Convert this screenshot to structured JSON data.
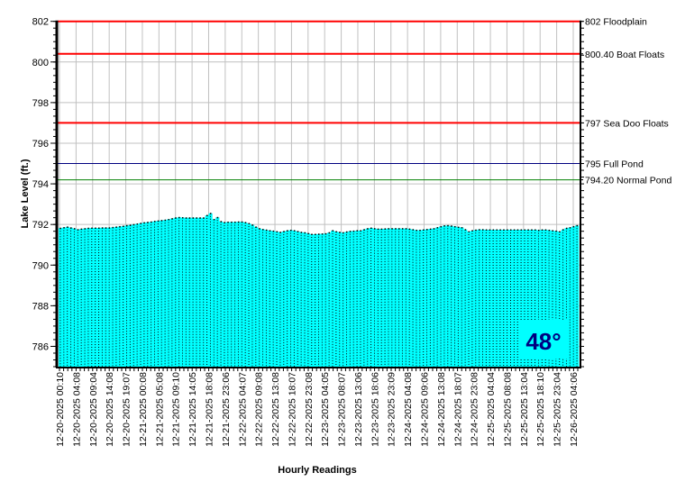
{
  "chart_data": {
    "type": "area",
    "title": "",
    "xlabel": "Hourly Readings",
    "ylabel": "Lake Level (ft.)",
    "ylim": [
      785,
      802
    ],
    "yticks": [
      786,
      788,
      790,
      792,
      794,
      796,
      798,
      800,
      802
    ],
    "grid": true,
    "fill_color": "#00FFFF",
    "x_tick_labels": [
      "12-20-2025 00:10",
      "12-20-2025 04:08",
      "12-20-2025 09:04",
      "12-20-2025 14:08",
      "12-20-2025 19:07",
      "12-21-2025 00:08",
      "12-21-2025 05:08",
      "12-21-2025 09:10",
      "12-21-2025 14:05",
      "12-21-2025 18:08",
      "12-21-2025 23:06",
      "12-22-2025 04:07",
      "12-22-2025 09:08",
      "12-22-2025 13:08",
      "12-22-2025 18:07",
      "12-22-2025 23:08",
      "12-23-2025 04:05",
      "12-23-2025 08:07",
      "12-23-2025 13:06",
      "12-23-2025 18:06",
      "12-23-2025 23:09",
      "12-24-2025 04:08",
      "12-24-2025 09:06",
      "12-24-2025 13:08",
      "12-24-2025 18:07",
      "12-24-2025 23:08",
      "12-25-2025 04:04",
      "12-25-2025 08:08",
      "12-25-2025 13:04",
      "12-25-2025 18:10",
      "12-25-2025 23:04",
      "12-26-2025 04:06"
    ],
    "values": [
      791.82,
      791.85,
      791.88,
      791.84,
      791.8,
      791.75,
      791.78,
      791.8,
      791.82,
      791.83,
      791.83,
      791.83,
      791.84,
      791.84,
      791.84,
      791.86,
      791.88,
      791.9,
      791.92,
      791.95,
      791.97,
      792.0,
      792.03,
      792.06,
      792.09,
      792.11,
      792.13,
      792.16,
      792.18,
      792.2,
      792.22,
      792.25,
      792.29,
      792.33,
      792.35,
      792.34,
      792.33,
      792.33,
      792.33,
      792.33,
      792.33,
      792.33,
      792.45,
      792.55,
      792.25,
      792.35,
      792.15,
      792.1,
      792.12,
      792.12,
      792.12,
      792.13,
      792.13,
      792.1,
      792.05,
      791.98,
      791.88,
      791.8,
      791.76,
      791.73,
      791.7,
      791.68,
      791.65,
      791.62,
      791.66,
      791.7,
      791.72,
      791.7,
      791.66,
      791.62,
      791.6,
      791.56,
      791.52,
      791.52,
      791.53,
      791.54,
      791.55,
      791.6,
      791.7,
      791.65,
      791.62,
      791.6,
      791.64,
      791.67,
      791.68,
      791.7,
      791.7,
      791.75,
      791.8,
      791.83,
      791.8,
      791.78,
      791.78,
      791.79,
      791.8,
      791.8,
      791.8,
      791.8,
      791.8,
      791.8,
      791.78,
      791.75,
      791.72,
      791.72,
      791.74,
      791.76,
      791.78,
      791.8,
      791.85,
      791.9,
      791.94,
      791.95,
      791.93,
      791.9,
      791.87,
      791.85,
      791.75,
      791.65,
      791.7,
      791.73,
      791.75,
      791.75,
      791.74,
      791.74,
      791.74,
      791.74,
      791.74,
      791.74,
      791.74,
      791.74,
      791.74,
      791.74,
      791.74,
      791.74,
      791.74,
      791.74,
      791.74,
      791.72,
      791.74,
      791.74,
      791.72,
      791.7,
      791.68,
      791.65,
      791.75,
      791.82,
      791.85,
      791.9,
      791.95
    ],
    "reference_lines": [
      {
        "value": 802,
        "label": "802 Floodplain",
        "color": "#FF0000",
        "heavy": true
      },
      {
        "value": 800.4,
        "label": "800.40 Boat Floats",
        "color": "#FF0000",
        "heavy": true
      },
      {
        "value": 797,
        "label": "797 Sea Doo Floats",
        "color": "#FF0000",
        "heavy": true
      },
      {
        "value": 795,
        "label": "795 Full Pond",
        "color": "#000080",
        "heavy": false
      },
      {
        "value": 794.2,
        "label": "794.20 Normal Pond",
        "color": "#008000",
        "heavy": false
      }
    ],
    "annotation": {
      "text": "48°",
      "color": "#000080",
      "background": "#00FFFF"
    }
  }
}
